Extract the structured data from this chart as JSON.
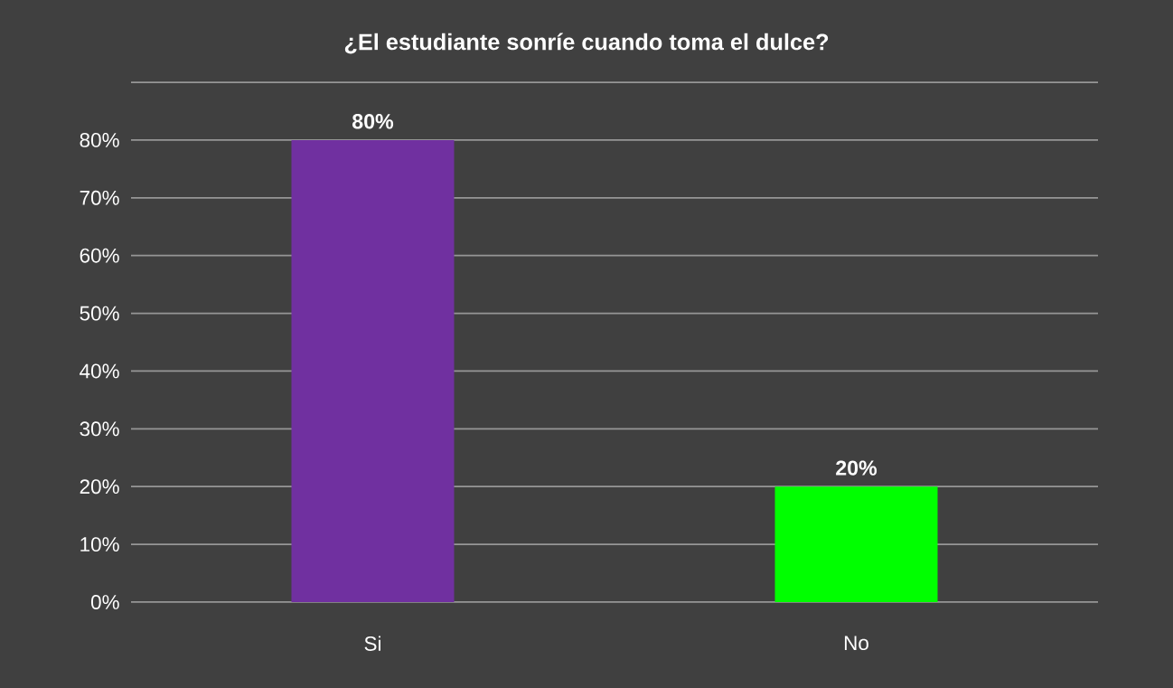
{
  "chart_data": {
    "type": "bar",
    "title": "¿El estudiante sonríe cuando toma el dulce?",
    "categories": [
      "Si",
      "No"
    ],
    "values": [
      80,
      20
    ],
    "colors": [
      "#7030a0",
      "#00ff00"
    ],
    "value_labels": [
      "80%",
      "20%"
    ],
    "ylim": [
      0,
      90
    ],
    "yticks": [
      {
        "value": 0,
        "label": "0%"
      },
      {
        "value": 10,
        "label": "10%"
      },
      {
        "value": 20,
        "label": "20%"
      },
      {
        "value": 30,
        "label": "30%"
      },
      {
        "value": 40,
        "label": "40%"
      },
      {
        "value": 50,
        "label": "50%"
      },
      {
        "value": 60,
        "label": "60%"
      },
      {
        "value": 70,
        "label": "70%"
      },
      {
        "value": 80,
        "label": "80%"
      },
      {
        "value": 90,
        "label": null
      }
    ],
    "grid": true
  }
}
